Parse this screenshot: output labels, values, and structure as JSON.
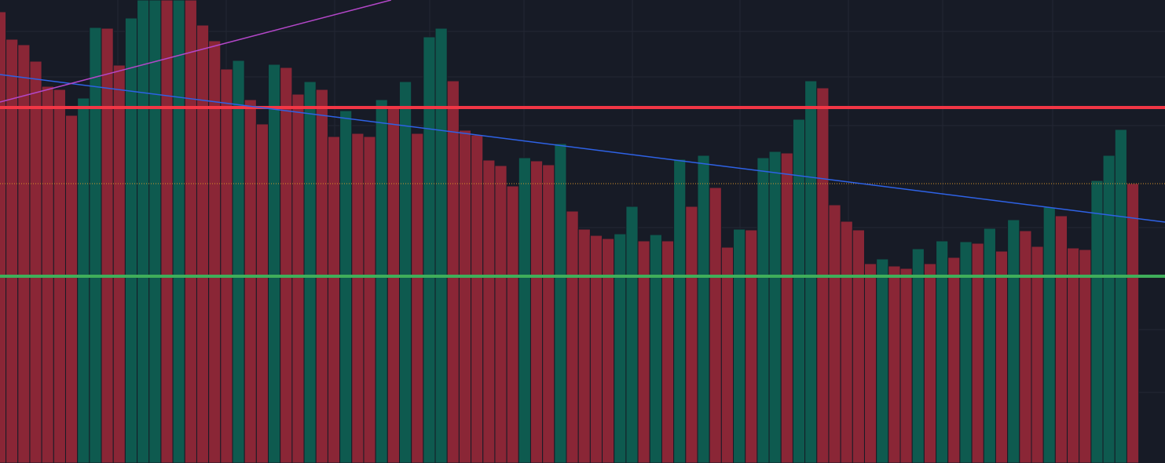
{
  "chart_data": {
    "type": "bar",
    "values": [
      575,
      540,
      533,
      512,
      480,
      476,
      443,
      465,
      555,
      554,
      507,
      567,
      590,
      590,
      590,
      590,
      590,
      558,
      538,
      502,
      513,
      463,
      432,
      508,
      504,
      470,
      486,
      476,
      416,
      449,
      420,
      416,
      463,
      455,
      486,
      420,
      543,
      554,
      487,
      424,
      418,
      386,
      379,
      353,
      389,
      385,
      380,
      407,
      321,
      298,
      290,
      286,
      292,
      327,
      283,
      291,
      283,
      387,
      327,
      392,
      351,
      275,
      298,
      297,
      389,
      397,
      395,
      438,
      487,
      478,
      329,
      308,
      297,
      254,
      260,
      251,
      248,
      273,
      254,
      283,
      262,
      282,
      280,
      299,
      270,
      310,
      296,
      276,
      326,
      315,
      274,
      272,
      360,
      392,
      425,
      356
    ],
    "colors": [
      "r",
      "r",
      "r",
      "r",
      "r",
      "r",
      "r",
      "g",
      "g",
      "r",
      "r",
      "g",
      "g",
      "g",
      "r",
      "g",
      "r",
      "r",
      "r",
      "r",
      "g",
      "r",
      "r",
      "g",
      "r",
      "r",
      "g",
      "r",
      "r",
      "g",
      "r",
      "r",
      "g",
      "r",
      "g",
      "r",
      "g",
      "g",
      "r",
      "r",
      "r",
      "r",
      "r",
      "r",
      "g",
      "r",
      "r",
      "g",
      "r",
      "r",
      "r",
      "r",
      "g",
      "g",
      "r",
      "g",
      "r",
      "g",
      "r",
      "g",
      "r",
      "r",
      "g",
      "r",
      "g",
      "g",
      "r",
      "g",
      "g",
      "r",
      "r",
      "r",
      "r",
      "r",
      "g",
      "r",
      "r",
      "g",
      "r",
      "g",
      "r",
      "g",
      "r",
      "g",
      "r",
      "g",
      "r",
      "r",
      "g",
      "r",
      "r",
      "r",
      "g",
      "g",
      "g",
      "r"
    ],
    "palette": {
      "r": "#8a2636",
      "g": "#0e5a4f"
    },
    "ylim": [
      0,
      590
    ],
    "xlim": [
      0,
      97.7
    ],
    "levels": [
      {
        "value": 453,
        "color": "#f23645",
        "style": "solid"
      },
      {
        "value": 238,
        "color": "#3fae5a",
        "style": "solid"
      },
      {
        "value": 356,
        "color": "#d9962b",
        "style": "dotted"
      }
    ],
    "trendlines": [
      {
        "color": "#2e62e6",
        "x": [
          0,
          97.7
        ],
        "values": [
          495,
          307
        ]
      },
      {
        "color": "#b447c9",
        "x": [
          0,
          32.8
        ],
        "values": [
          460,
          590
        ]
      }
    ]
  }
}
